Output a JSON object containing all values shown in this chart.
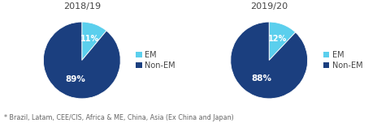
{
  "charts": [
    {
      "title": "2018/19",
      "values": [
        11,
        89
      ],
      "text_labels": [
        "11%",
        "89%"
      ]
    },
    {
      "title": "2019/20",
      "values": [
        12,
        88
      ],
      "text_labels": [
        "12%",
        "88%"
      ]
    }
  ],
  "colors": [
    "#5bcfed",
    "#1b3f7f"
  ],
  "legend_labels": [
    "EM",
    "Non-EM"
  ],
  "footnote": "* Brazil, Latam, CEE/CIS, Africa & ME, China, Asia (Ex China and Japan)",
  "background_color": "#ffffff",
  "title_fontsize": 8,
  "label_fontsize": 7.5,
  "legend_fontsize": 7,
  "footnote_fontsize": 5.8
}
